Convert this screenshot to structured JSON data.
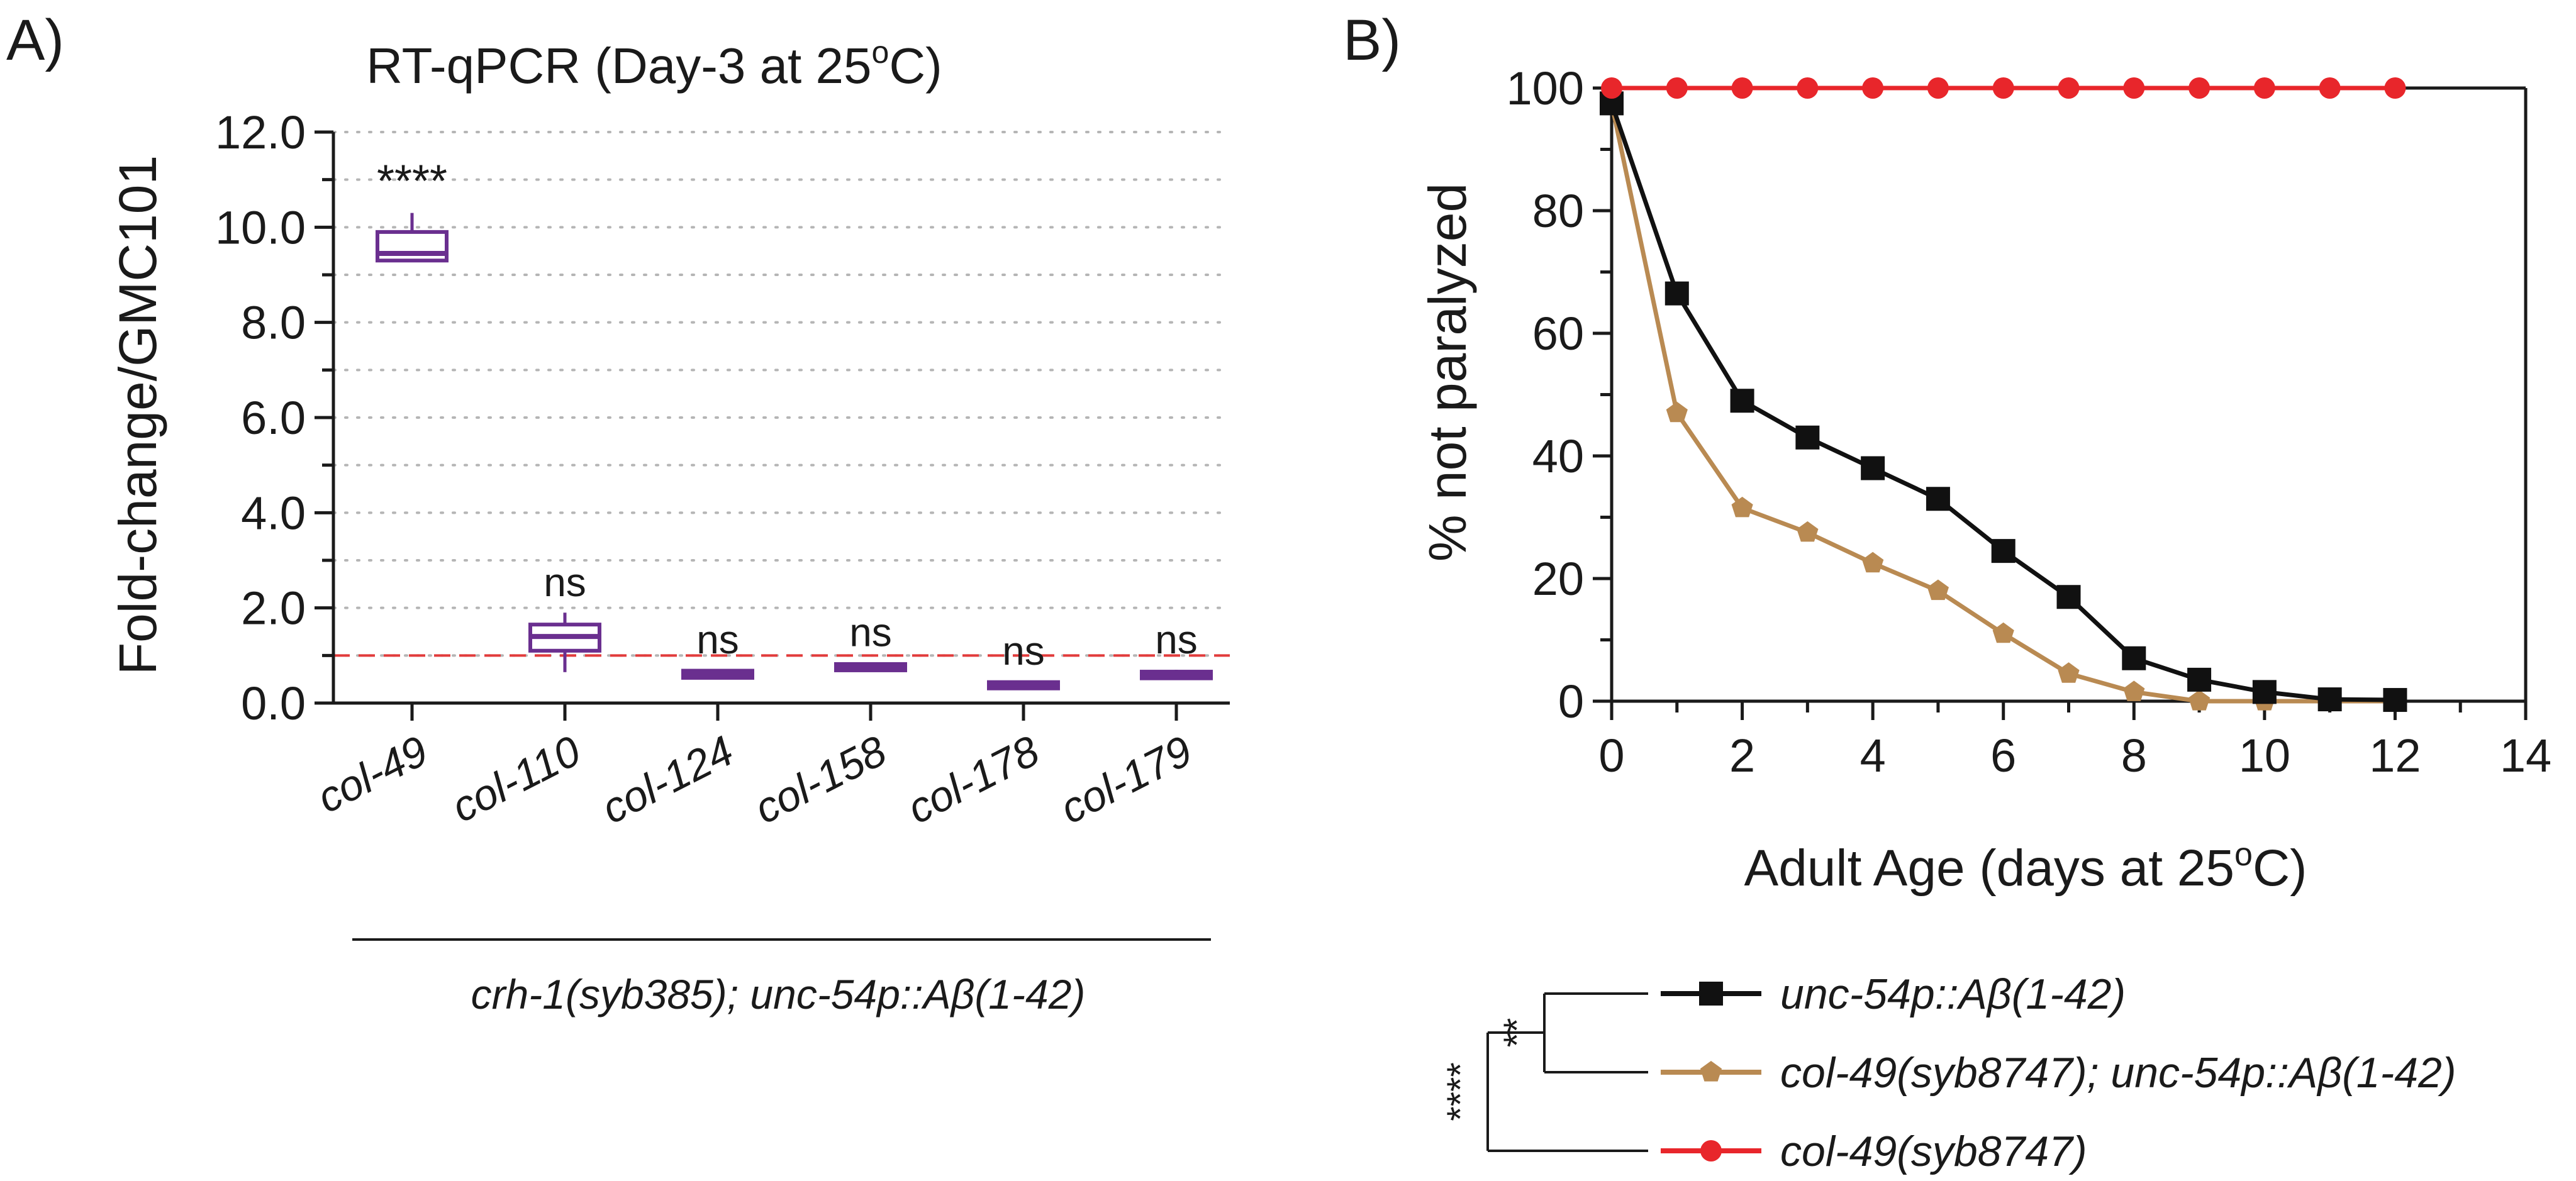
{
  "panel_a_label": "A)",
  "panel_b_label": "B)",
  "chart_data": [
    {
      "type": "box",
      "title_main": "RT-qPCR (Day-3 at 25",
      "title_deg": "o",
      "title_tail": "C)",
      "ylabel": "Fold-change/GMC101",
      "ylim": [
        0,
        12
      ],
      "yticks": [
        "0.0",
        "2.0",
        "4.0",
        "6.0",
        "8.0",
        "10.0",
        "12.0"
      ],
      "reference_line": 1.0,
      "categories": [
        "col-49",
        "col-110",
        "col-124",
        "col-158",
        "col-178",
        "col-179"
      ],
      "boxes": [
        {
          "min": 9.3,
          "q1": 9.3,
          "median": 9.45,
          "q3": 9.9,
          "max": 10.3
        },
        {
          "min": 0.65,
          "q1": 1.1,
          "median": 1.4,
          "q3": 1.65,
          "max": 1.9
        },
        {
          "min": 0.53,
          "q1": 0.53,
          "median": 0.6,
          "q3": 0.68,
          "max": 0.7
        },
        {
          "min": 0.7,
          "q1": 0.7,
          "median": 0.76,
          "q3": 0.82,
          "max": 0.85
        },
        {
          "min": 0.36,
          "q1": 0.36,
          "median": 0.4,
          "q3": 0.44,
          "max": 0.46
        },
        {
          "min": 0.52,
          "q1": 0.52,
          "median": 0.6,
          "q3": 0.66,
          "max": 0.7
        }
      ],
      "significance": [
        "****",
        "ns",
        "ns",
        "ns",
        "ns",
        "ns"
      ],
      "group_label": "crh-1(syb385); unc-54p::Aβ(1-42)",
      "colors": {
        "box": "#6a2f8f",
        "reference": "#e23b3b"
      }
    },
    {
      "type": "line",
      "xlabel_main": "Adult Age (days at 25",
      "xlabel_deg": "o",
      "xlabel_tail": "C)",
      "ylabel": "% not paralyzed",
      "xlim": [
        0,
        14
      ],
      "ylim": [
        0,
        100
      ],
      "xticks": [
        "0",
        "2",
        "4",
        "6",
        "8",
        "10",
        "12",
        "14"
      ],
      "yticks": [
        "0",
        "20",
        "40",
        "60",
        "80",
        "100"
      ],
      "series": [
        {
          "name": "unc-54p::Aβ(1-42)",
          "color": "#111111",
          "marker": "square",
          "x": [
            0,
            1,
            2,
            3,
            4,
            5,
            6,
            7,
            8,
            9,
            10,
            11,
            12
          ],
          "y": [
            97.5,
            66.5,
            49,
            43,
            38,
            33,
            24.5,
            17,
            7,
            3.5,
            1.5,
            0.3,
            0.2
          ]
        },
        {
          "name": "col-49(syb8747); unc-54p::Aβ(1-42)",
          "color": "#b98a52",
          "marker": "pentagon",
          "x": [
            0,
            1,
            2,
            3,
            4,
            5,
            6,
            7,
            8,
            9,
            10,
            11,
            12
          ],
          "y": [
            97.5,
            47,
            31.5,
            27.5,
            22.5,
            18,
            11,
            4.5,
            1.5,
            0,
            0,
            0,
            0
          ]
        },
        {
          "name": "col-49(syb8747)",
          "color": "#e8262b",
          "marker": "circle",
          "x": [
            0,
            1,
            2,
            3,
            4,
            5,
            6,
            7,
            8,
            9,
            10,
            11,
            12
          ],
          "y": [
            100,
            100,
            100,
            100,
            100,
            100,
            100,
            100,
            100,
            100,
            100,
            100,
            100
          ]
        }
      ],
      "legend_stats": [
        "**",
        "****"
      ]
    }
  ]
}
